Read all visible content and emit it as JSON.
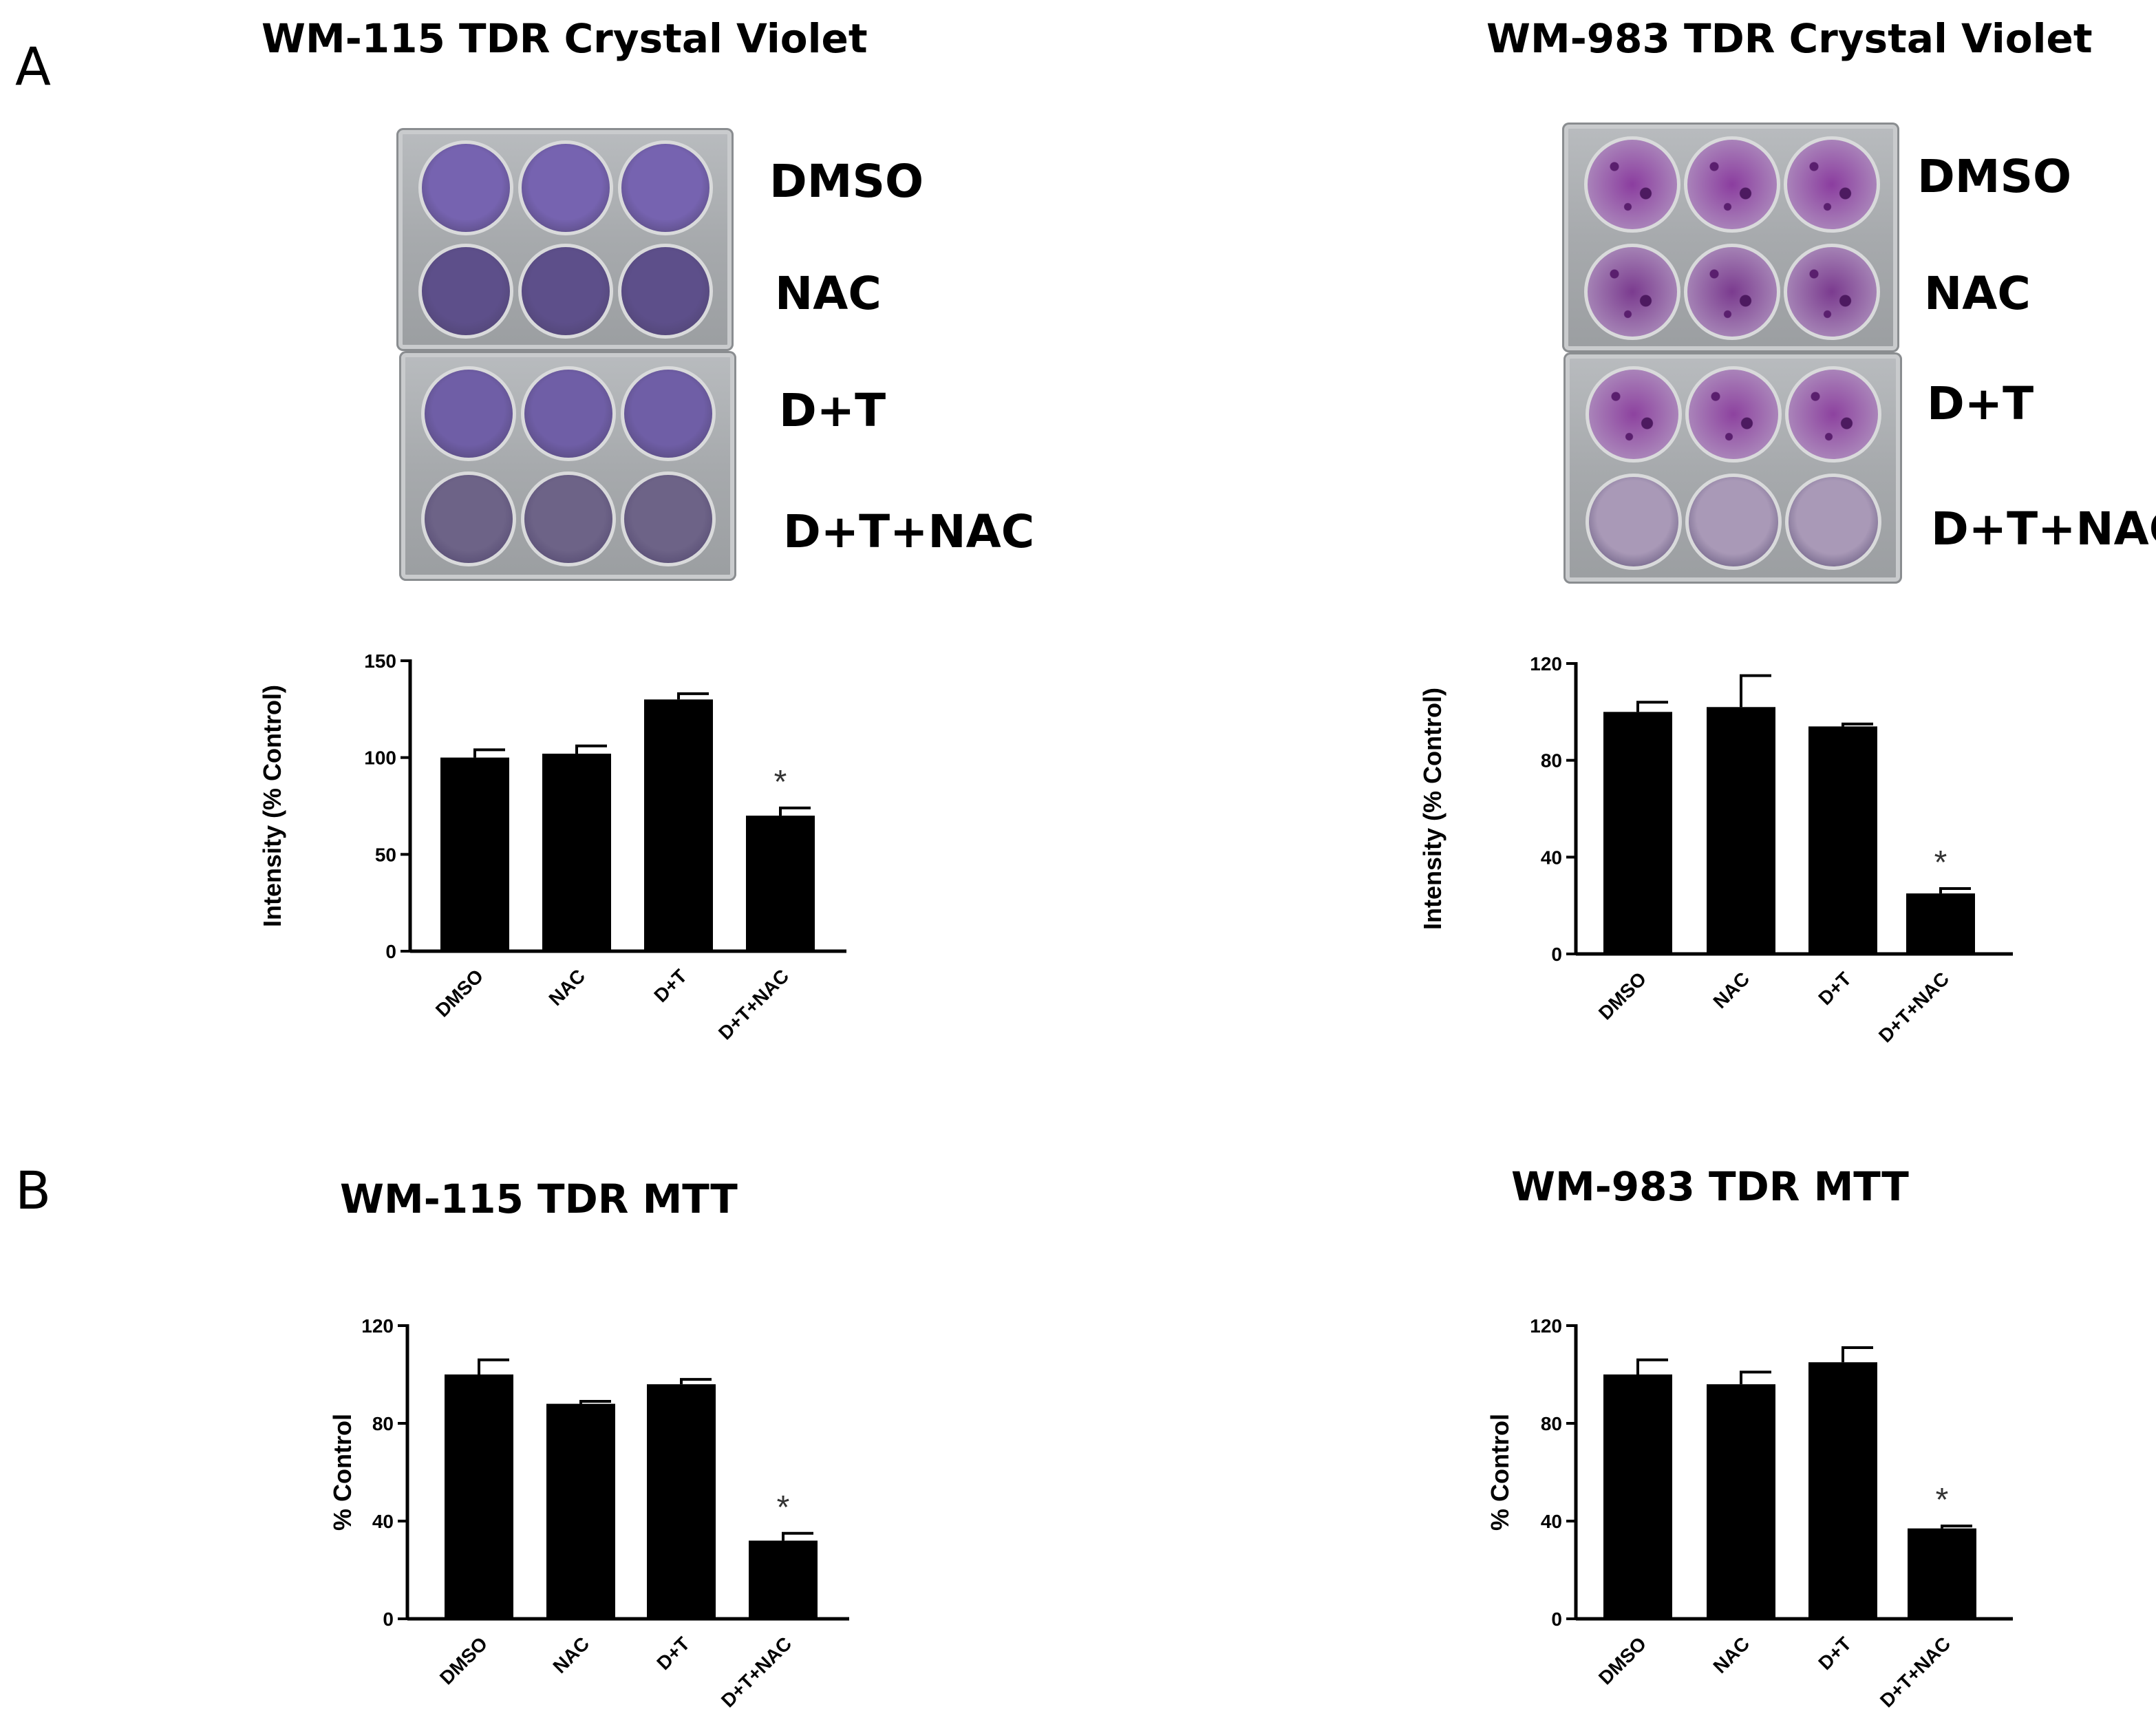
{
  "panels": {
    "A": {
      "letter": "A"
    },
    "B": {
      "letter": "B"
    }
  },
  "plates": [
    {
      "title": "WM-115 TDR Crystal Violet",
      "rows": [
        "DMSO",
        "NAC",
        "D+T",
        "D+T+NAC"
      ],
      "stain_colors": [
        "#7663b0",
        "#5d4f8a",
        "#6f5ea6",
        "#6d6387"
      ]
    },
    {
      "title": "WM-983 TDR Crystal Violet",
      "rows": [
        "DMSO",
        "NAC",
        "D+T",
        "D+T+NAC"
      ],
      "stain_colors": [
        "#8b3d9f",
        "#7b3b8f",
        "#8d429f",
        "#a999b7"
      ]
    }
  ],
  "chart_data": [
    {
      "type": "bar",
      "title": "",
      "ylabel": "Intensity (% Control)",
      "categories": [
        "DMSO",
        "NAC",
        "D+T",
        "D+T+NAC"
      ],
      "values": [
        100,
        102,
        130,
        70
      ],
      "errors": [
        4,
        4,
        3,
        4
      ],
      "significance": [
        "",
        "",
        "",
        "*"
      ],
      "ylim": [
        0,
        150
      ],
      "yticks": [
        0,
        50,
        100,
        150
      ],
      "bar_color": "#000000"
    },
    {
      "type": "bar",
      "title": "",
      "ylabel": "Intensity (% Control)",
      "categories": [
        "DMSO",
        "NAC",
        "D+T",
        "D+T+NAC"
      ],
      "values": [
        100,
        102,
        94,
        25
      ],
      "errors": [
        4,
        13,
        1,
        2
      ],
      "significance": [
        "",
        "",
        "",
        "*"
      ],
      "ylim": [
        0,
        120
      ],
      "yticks": [
        0,
        40,
        80,
        120
      ],
      "bar_color": "#000000"
    },
    {
      "type": "bar",
      "title": "WM-115 TDR MTT",
      "ylabel": "% Control",
      "categories": [
        "DMSO",
        "NAC",
        "D+T",
        "D+T+NAC"
      ],
      "values": [
        100,
        88,
        96,
        32
      ],
      "errors": [
        6,
        1,
        2,
        3
      ],
      "significance": [
        "",
        "",
        "",
        "*"
      ],
      "ylim": [
        0,
        120
      ],
      "yticks": [
        0,
        40,
        80,
        120
      ],
      "bar_color": "#000000"
    },
    {
      "type": "bar",
      "title": "WM-983 TDR MTT",
      "ylabel": "% Control",
      "categories": [
        "DMSO",
        "NAC",
        "D+T",
        "D+T+NAC"
      ],
      "values": [
        100,
        96,
        105,
        37
      ],
      "errors": [
        6,
        5,
        6,
        1
      ],
      "significance": [
        "",
        "",
        "",
        "*"
      ],
      "ylim": [
        0,
        120
      ],
      "yticks": [
        0,
        40,
        80,
        120
      ],
      "bar_color": "#000000"
    }
  ]
}
